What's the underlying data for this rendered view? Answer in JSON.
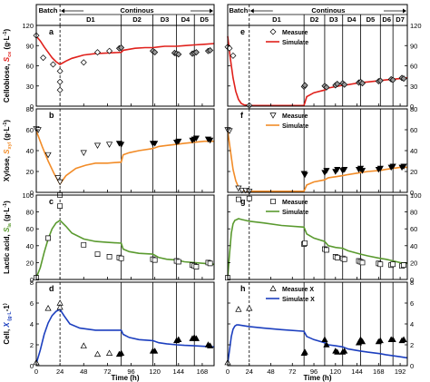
{
  "chart_data": [
    {
      "type": "line",
      "panel": "a",
      "ylabel": [
        "Cellobiose, ",
        "S",
        "ce",
        " (g·L",
        "-1",
        ")"
      ],
      "ylabel_color": "#e0201b",
      "xlim": [
        0,
        180
      ],
      "ylim": [
        0,
        120
      ],
      "yticks": [
        "0",
        "30",
        "60",
        "90",
        "120"
      ],
      "xticks": [
        "0",
        "24",
        "48",
        "72",
        "96",
        "120",
        "144",
        "168"
      ],
      "xtick_values": [
        0,
        24,
        48,
        72,
        96,
        120,
        144,
        168
      ],
      "stages": [
        24,
        86,
        118,
        142,
        160,
        180
      ],
      "stage_labels": [
        "Batch",
        "D1",
        "D2",
        "D3",
        "D4",
        "D5"
      ],
      "continuous_label": "Continous",
      "marker": "diamond",
      "series": [
        {
          "name": "",
          "role": "simulate",
          "color": "#e0201b",
          "x": [
            0,
            4,
            8,
            12,
            16,
            20,
            24,
            30,
            36,
            48,
            60,
            72,
            86,
            88,
            92,
            100,
            110,
            118,
            124,
            130,
            142,
            150,
            160,
            170,
            180
          ],
          "y": [
            104,
            97,
            88,
            80,
            72,
            66,
            62,
            67,
            71,
            76,
            78,
            79,
            80,
            83,
            84,
            86,
            87,
            87,
            88,
            89,
            89,
            90,
            91,
            92,
            93
          ]
        },
        {
          "name": "",
          "role": "measure",
          "x": [
            0,
            7,
            17,
            24,
            24,
            24,
            48,
            62,
            74,
            84,
            86,
            118,
            120,
            140,
            142,
            144,
            158,
            160,
            162,
            174,
            176
          ],
          "y": [
            105,
            72,
            62,
            52,
            36,
            24,
            65,
            80,
            82,
            86,
            87,
            82,
            80,
            79,
            78,
            77,
            78,
            79,
            80,
            82,
            83
          ]
        }
      ]
    },
    {
      "type": "line",
      "panel": "b",
      "ylabel": [
        "Xylose, ",
        "S",
        "xyl",
        " (g·L",
        "-1",
        ")"
      ],
      "ylabel_color": "#f28c28",
      "xlim": [
        0,
        180
      ],
      "ylim": [
        0,
        80
      ],
      "yticks": [
        "0",
        "20",
        "40",
        "60",
        "80"
      ],
      "marker": "triangle-down",
      "series": [
        {
          "name": "",
          "role": "simulate",
          "color": "#f28c28",
          "x": [
            0,
            6,
            12,
            18,
            24,
            30,
            40,
            50,
            60,
            72,
            86,
            88,
            94,
            104,
            118,
            124,
            132,
            142,
            150,
            160,
            170,
            180
          ],
          "y": [
            59,
            44,
            30,
            18,
            8,
            16,
            23,
            26,
            28,
            28,
            29,
            36,
            38,
            40,
            42,
            44,
            45,
            46,
            47,
            48,
            49,
            49
          ]
        },
        {
          "name": "",
          "role": "measure",
          "x": [
            0,
            2,
            12,
            22,
            24,
            48,
            62,
            74,
            84,
            86,
            118,
            120,
            142,
            144,
            158,
            160,
            162,
            174,
            176
          ],
          "y": [
            61,
            60,
            36,
            14,
            10,
            38,
            45,
            46,
            47,
            46,
            47,
            47,
            48,
            49,
            50,
            51,
            52,
            51,
            50
          ]
        }
      ]
    },
    {
      "type": "line",
      "panel": "c",
      "ylabel": [
        "Lactic acid, ",
        "S",
        "la",
        " (g·L",
        "-1",
        ")"
      ],
      "ylabel_color": "#5a9a2f",
      "xlim": [
        0,
        180
      ],
      "ylim": [
        0,
        100
      ],
      "yticks": [
        "0",
        "20",
        "40",
        "60",
        "80",
        "100"
      ],
      "marker": "square",
      "series": [
        {
          "name": "",
          "role": "simulate",
          "color": "#5a9a2f",
          "x": [
            0,
            4,
            8,
            12,
            16,
            20,
            24,
            30,
            36,
            48,
            60,
            72,
            86,
            88,
            94,
            104,
            118,
            124,
            132,
            142,
            150,
            160,
            170,
            180
          ],
          "y": [
            2,
            14,
            32,
            48,
            60,
            67,
            70,
            63,
            55,
            48,
            45,
            44,
            43,
            36,
            33,
            31,
            30,
            26,
            24,
            23,
            21,
            20,
            19,
            18
          ]
        },
        {
          "name": "",
          "role": "measure",
          "x": [
            0,
            12,
            24,
            24,
            48,
            62,
            74,
            84,
            86,
            118,
            120,
            142,
            144,
            158,
            160,
            162,
            174,
            176
          ],
          "y": [
            2,
            49,
            87,
            100,
            41,
            30,
            27,
            26,
            25,
            24,
            23,
            22,
            21,
            17,
            16,
            15,
            20,
            19
          ]
        }
      ]
    },
    {
      "type": "line",
      "panel": "d",
      "ylabel": [
        "Cell, ",
        "X",
        " (g·L",
        "-1",
        ")"
      ],
      "ylabel_color": "#1c3fbf",
      "xlabel": "Time (h)",
      "xlim": [
        0,
        180
      ],
      "ylim": [
        0,
        8
      ],
      "yticks": [
        "0",
        "2",
        "4",
        "6",
        "8"
      ],
      "marker": "triangle-up",
      "series": [
        {
          "name": "",
          "role": "simulate",
          "color": "#1c3fbf",
          "x": [
            0,
            4,
            8,
            12,
            16,
            20,
            24,
            28,
            34,
            44,
            60,
            72,
            86,
            88,
            94,
            104,
            118,
            124,
            132,
            142,
            150,
            160,
            170,
            180
          ],
          "y": [
            0.2,
            1.5,
            3.0,
            4.1,
            4.8,
            5.2,
            5.4,
            4.8,
            4.0,
            3.6,
            3.4,
            3.4,
            3.4,
            3.0,
            2.7,
            2.5,
            2.4,
            2.2,
            2.1,
            2.0,
            1.95,
            1.9,
            1.85,
            1.8
          ]
        },
        {
          "name": "",
          "role": "measure",
          "x": [
            0,
            12,
            24,
            24,
            48,
            62,
            74,
            84,
            86,
            118,
            120,
            142,
            144,
            158,
            160,
            162,
            174,
            176
          ],
          "y": [
            0.3,
            5.5,
            6.0,
            5.6,
            1.9,
            1.1,
            1.2,
            1.1,
            1.2,
            1.4,
            1.4,
            2.4,
            2.5,
            2.6,
            2.7,
            2.6,
            2.0,
            1.9
          ]
        }
      ]
    },
    {
      "type": "line",
      "panel": "e",
      "xlim": [
        0,
        200
      ],
      "ylim": [
        0,
        120
      ],
      "yticks": [
        "0",
        "30",
        "60",
        "90",
        "120"
      ],
      "xticks": [
        "0",
        "24",
        "48",
        "72",
        "96",
        "120",
        "144",
        "168",
        "192"
      ],
      "xtick_values": [
        0,
        24,
        48,
        72,
        96,
        120,
        144,
        168,
        192
      ],
      "stages": [
        24,
        85,
        108,
        128,
        148,
        170,
        184,
        200
      ],
      "stage_labels": [
        "Batch",
        "D1",
        "D2",
        "D3",
        "D4",
        "D5",
        "D6",
        "D7"
      ],
      "continuous_label": "Continous",
      "legend": {
        "measure": "Measure",
        "simulate": "Simulate"
      },
      "marker": "diamond",
      "series": [
        {
          "name": "Simulate",
          "role": "simulate",
          "color": "#e0201b",
          "x": [
            0,
            3,
            6,
            9,
            12,
            15,
            18,
            24,
            40,
            60,
            85,
            88,
            96,
            108,
            112,
            120,
            128,
            134,
            148,
            156,
            170,
            176,
            184,
            192,
            200
          ],
          "y": [
            104,
            70,
            42,
            22,
            10,
            4,
            2,
            1,
            1,
            1,
            1,
            14,
            20,
            24,
            27,
            29,
            31,
            32,
            35,
            36,
            38,
            39,
            40,
            41,
            42
          ]
        },
        {
          "name": "Measure",
          "role": "measure",
          "x": [
            0,
            2,
            6,
            24,
            85,
            86,
            108,
            110,
            120,
            122,
            128,
            130,
            146,
            148,
            150,
            168,
            170,
            182,
            184,
            194,
            196
          ],
          "y": [
            88,
            86,
            75,
            1,
            29,
            31,
            30,
            28,
            31,
            33,
            34,
            32,
            35,
            36,
            34,
            37,
            38,
            40,
            39,
            42,
            41
          ]
        }
      ]
    },
    {
      "type": "line",
      "panel": "f",
      "xlim": [
        0,
        200
      ],
      "ylim": [
        0,
        80
      ],
      "yticks": [
        "0",
        "20",
        "40",
        "60",
        "80"
      ],
      "legend": {
        "measure": "Measure",
        "simulate": "Simulate"
      },
      "marker": "triangle-down",
      "series": [
        {
          "name": "Simulate",
          "role": "simulate",
          "color": "#f28c28",
          "x": [
            0,
            3,
            6,
            9,
            12,
            16,
            20,
            24,
            40,
            60,
            85,
            88,
            96,
            108,
            112,
            120,
            128,
            134,
            148,
            156,
            170,
            176,
            184,
            192,
            200
          ],
          "y": [
            59,
            40,
            22,
            11,
            5,
            2,
            1,
            1,
            1,
            1,
            1,
            7,
            10,
            12,
            14,
            15,
            16,
            17,
            19,
            20,
            21,
            22,
            23,
            24,
            24
          ]
        },
        {
          "name": "Measure",
          "role": "measure",
          "x": [
            0,
            2,
            12,
            16,
            20,
            24,
            85,
            86,
            108,
            110,
            120,
            122,
            128,
            130,
            146,
            148,
            150,
            168,
            170,
            182,
            184,
            194,
            196
          ],
          "y": [
            60,
            59,
            4,
            2,
            2,
            1,
            18,
            17,
            19,
            21,
            20,
            22,
            21,
            22,
            22,
            23,
            21,
            22,
            23,
            24,
            25,
            24,
            25
          ]
        }
      ]
    },
    {
      "type": "line",
      "panel": "g",
      "xlim": [
        0,
        200
      ],
      "ylim": [
        0,
        100
      ],
      "yticks": [
        "0",
        "20",
        "40",
        "60",
        "80",
        "100"
      ],
      "legend": {
        "measure": "Measure",
        "simulate": "Simulate"
      },
      "marker": "square",
      "series": [
        {
          "name": "Simulate",
          "role": "simulate",
          "color": "#5a9a2f",
          "x": [
            0,
            2,
            4,
            6,
            8,
            10,
            12,
            16,
            20,
            24,
            40,
            60,
            85,
            88,
            96,
            108,
            112,
            120,
            128,
            134,
            148,
            156,
            170,
            176,
            184,
            192,
            200
          ],
          "y": [
            2,
            30,
            55,
            66,
            70,
            71,
            72,
            71,
            70,
            69,
            67,
            64,
            62,
            54,
            49,
            45,
            40,
            38,
            37,
            34,
            30,
            28,
            25,
            24,
            22,
            20,
            19
          ]
        },
        {
          "name": "Measure",
          "role": "measure",
          "x": [
            0,
            12,
            24,
            85,
            86,
            108,
            110,
            120,
            122,
            128,
            130,
            146,
            148,
            150,
            168,
            170,
            182,
            184,
            194,
            196
          ],
          "y": [
            2,
            95,
            96,
            42,
            43,
            36,
            35,
            27,
            26,
            25,
            24,
            22,
            21,
            20,
            19,
            18,
            17,
            18,
            16,
            17
          ]
        }
      ]
    },
    {
      "type": "line",
      "panel": "h",
      "xlabel": "Time (h)",
      "xlim": [
        0,
        200
      ],
      "ylim": [
        0,
        8
      ],
      "yticks": [
        "0",
        "2",
        "4",
        "6",
        "8"
      ],
      "legend": {
        "measure": "Measure X",
        "simulate": "Simulate X"
      },
      "marker": "triangle-up",
      "series": [
        {
          "name": "Simulate X",
          "role": "simulate",
          "color": "#1c3fbf",
          "x": [
            0,
            2,
            4,
            6,
            8,
            10,
            12,
            16,
            20,
            24,
            40,
            60,
            85,
            88,
            96,
            108,
            112,
            120,
            128,
            134,
            148,
            156,
            170,
            176,
            184,
            192,
            200
          ],
          "y": [
            0.2,
            1.5,
            2.8,
            3.5,
            3.8,
            3.9,
            3.9,
            3.85,
            3.8,
            3.75,
            3.6,
            3.45,
            3.3,
            2.8,
            2.5,
            2.2,
            2.0,
            1.9,
            1.8,
            1.6,
            1.4,
            1.3,
            1.15,
            1.05,
            0.95,
            0.85,
            0.75
          ]
        },
        {
          "name": "Measure X",
          "role": "measure",
          "x": [
            0,
            12,
            24,
            85,
            86,
            108,
            110,
            120,
            122,
            128,
            130,
            146,
            148,
            150,
            168,
            170,
            182,
            184,
            194,
            196
          ],
          "y": [
            0.3,
            5.4,
            5.5,
            1.2,
            1.3,
            2.5,
            2.0,
            1.4,
            1.3,
            1.3,
            1.4,
            2.2,
            2.5,
            2.3,
            2.3,
            2.4,
            2.5,
            2.5,
            2.4,
            2.5
          ]
        }
      ]
    }
  ]
}
